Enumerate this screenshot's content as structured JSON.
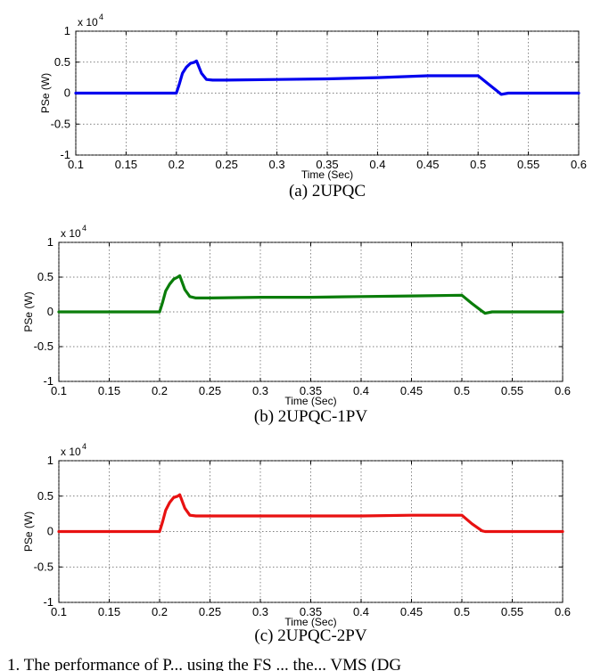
{
  "chart_data": [
    {
      "type": "line",
      "caption": "(a) 2UPQC",
      "xlabel": "Time (Sec)",
      "ylabel": "PSe (W)",
      "y_multiplier": "x 10",
      "y_multiplier_exp": "4",
      "xlim": [
        0.1,
        0.6
      ],
      "ylim": [
        -1,
        1
      ],
      "xticks": [
        "0.1",
        "0.15",
        "0.2",
        "0.25",
        "0.3",
        "0.35",
        "0.4",
        "0.45",
        "0.5",
        "0.55",
        "0.6"
      ],
      "yticks": [
        "1",
        "0.5",
        "0",
        "-0.5",
        "-1"
      ],
      "grid": true,
      "series": [
        {
          "color": "#0000ee",
          "x": [
            0.1,
            0.2,
            0.203,
            0.206,
            0.21,
            0.214,
            0.218,
            0.22,
            0.225,
            0.23,
            0.236,
            0.25,
            0.3,
            0.35,
            0.4,
            0.45,
            0.5,
            0.51,
            0.52,
            0.523,
            0.53,
            0.6
          ],
          "y": [
            0,
            0,
            0.15,
            0.32,
            0.42,
            0.48,
            0.5,
            0.52,
            0.32,
            0.22,
            0.21,
            0.21,
            0.22,
            0.23,
            0.25,
            0.28,
            0.28,
            0.15,
            0.02,
            -0.02,
            0,
            0
          ]
        }
      ]
    },
    {
      "type": "line",
      "caption": "(b) 2UPQC-1PV",
      "xlabel": "Time (Sec)",
      "ylabel": "PSe (W)",
      "y_multiplier": "x 10",
      "y_multiplier_exp": "4",
      "xlim": [
        0.1,
        0.6
      ],
      "ylim": [
        -1,
        1
      ],
      "xticks": [
        "0.1",
        "0.15",
        "0.2",
        "0.25",
        "0.3",
        "0.35",
        "0.4",
        "0.45",
        "0.5",
        "0.55",
        "0.6"
      ],
      "yticks": [
        "1",
        "0.5",
        "0",
        "-0.5",
        "-1"
      ],
      "grid": true,
      "series": [
        {
          "color": "#0a7d0a",
          "x": [
            0.1,
            0.2,
            0.203,
            0.206,
            0.21,
            0.214,
            0.218,
            0.22,
            0.225,
            0.23,
            0.236,
            0.25,
            0.3,
            0.35,
            0.4,
            0.45,
            0.5,
            0.51,
            0.52,
            0.523,
            0.53,
            0.6
          ],
          "y": [
            0,
            0,
            0.14,
            0.3,
            0.4,
            0.47,
            0.5,
            0.52,
            0.32,
            0.22,
            0.2,
            0.2,
            0.21,
            0.21,
            0.22,
            0.23,
            0.24,
            0.12,
            0.01,
            -0.02,
            0,
            0
          ]
        }
      ]
    },
    {
      "type": "line",
      "caption": "(c) 2UPQC-2PV",
      "xlabel": "Time (Sec)",
      "ylabel": "PSe (W)",
      "y_multiplier": "x 10",
      "y_multiplier_exp": "4",
      "xlim": [
        0.1,
        0.6
      ],
      "ylim": [
        -1,
        1
      ],
      "xticks": [
        "0.1",
        "0.15",
        "0.2",
        "0.25",
        "0.3",
        "0.35",
        "0.4",
        "0.45",
        "0.5",
        "0.55",
        "0.6"
      ],
      "yticks": [
        "1",
        "0.5",
        "0",
        "-0.5",
        "-1"
      ],
      "grid": true,
      "series": [
        {
          "color": "#e81111",
          "x": [
            0.1,
            0.2,
            0.203,
            0.206,
            0.21,
            0.214,
            0.218,
            0.22,
            0.225,
            0.23,
            0.236,
            0.25,
            0.3,
            0.35,
            0.4,
            0.45,
            0.5,
            0.51,
            0.52,
            0.523,
            0.53,
            0.6
          ],
          "y": [
            0,
            0,
            0.14,
            0.3,
            0.41,
            0.48,
            0.5,
            0.52,
            0.33,
            0.23,
            0.22,
            0.22,
            0.22,
            0.22,
            0.22,
            0.23,
            0.23,
            0.11,
            0.01,
            0,
            0,
            0
          ]
        }
      ]
    }
  ],
  "footer_text": "1. The performance of P... using the FS ... the... VMS (DG"
}
